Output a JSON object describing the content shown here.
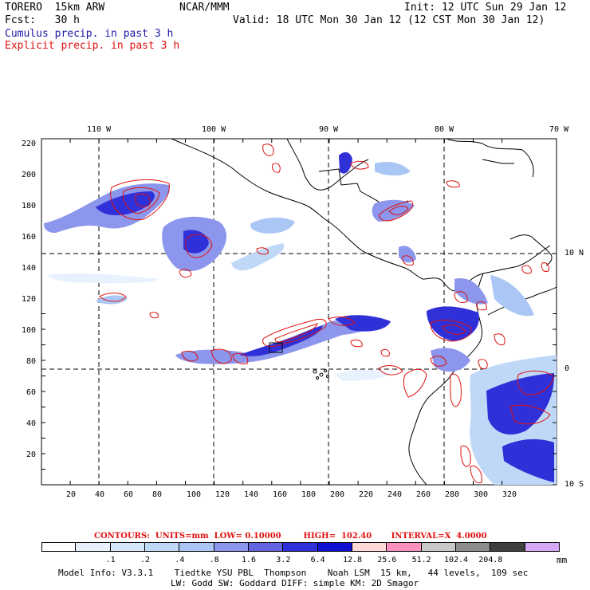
{
  "header": {
    "model": "TORERO  15km ARW",
    "org": "NCAR/MMM",
    "init": "Init: 12 UTC Sun 29 Jan 12",
    "fcst": "Fcst:   30 h",
    "valid": "Valid: 18 UTC Mon 30 Jan 12 (12 CST Mon 30 Jan 12)",
    "line_cumulus": "Cumulus precip. in past 3 h",
    "line_explicit": "Explicit precip. in past 3 h"
  },
  "map": {
    "top_lon_labels": [
      "110 W",
      "100 W",
      "90 W",
      "80 W",
      "70 W"
    ],
    "right_lat_labels": [
      "10 N",
      "0",
      "10 S"
    ],
    "left_y_ticks": [
      "220",
      "200",
      "180",
      "160",
      "140",
      "120",
      "100",
      "80",
      "60",
      "40",
      "20"
    ],
    "bottom_x_ticks": [
      "20",
      "40",
      "60",
      "80",
      "100",
      "120",
      "140",
      "160",
      "180",
      "200",
      "220",
      "240",
      "260",
      "280",
      "300",
      "320"
    ]
  },
  "contour_info": {
    "text": "CONTOURS:  UNITS=mm  LOW= 0.10000        HIGH=  102.40       INTERVAL=X  4.0000"
  },
  "colorbar": {
    "colors": [
      "#ffffff",
      "#e8f2ff",
      "#d6e6fb",
      "#c0d8f7",
      "#aac6f5",
      "#8c96ec",
      "#6464e0",
      "#3030d8",
      "#1010d0",
      "#ffd8d8",
      "#ff90c0",
      "#c8c8c8",
      "#8c8c8c",
      "#404040",
      "#d8a8f8"
    ],
    "labels": [
      ".1",
      ".2",
      ".4",
      ".8",
      "1.6",
      "3.2",
      "6.4",
      "12.8",
      "25.6",
      "51.2",
      "102.4",
      "204.8"
    ],
    "unit": "mm"
  },
  "footer": {
    "line1": "Model Info: V3.3.1    Tiedtke YSU PBL  Thompson    Noah LSM  15 km,   44 levels,  109 sec",
    "line2": "LW: Godd SW: Goddard DIFF: simple KM: 2D Smagor"
  }
}
